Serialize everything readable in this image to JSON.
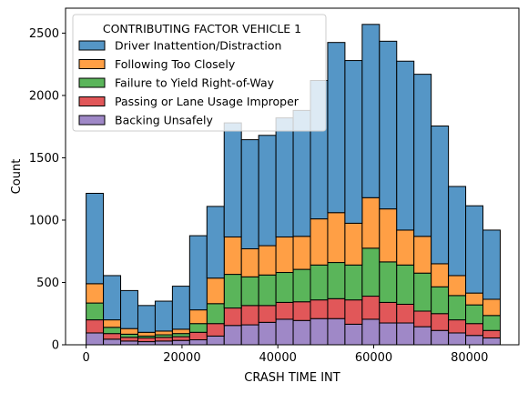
{
  "chart_data": {
    "type": "bar",
    "stacked": true,
    "xlabel": "CRASH TIME INT",
    "ylabel": "Count",
    "xlim": [
      -4300,
      90300
    ],
    "ylim": [
      0,
      2700
    ],
    "xticks": [
      0,
      20000,
      40000,
      60000,
      80000
    ],
    "xtick_labels": [
      "0",
      "20000",
      "40000",
      "60000",
      "80000"
    ],
    "yticks": [
      0,
      500,
      1000,
      1500,
      2000,
      2500
    ],
    "ytick_labels": [
      "0",
      "500",
      "1000",
      "1500",
      "2000",
      "2500"
    ],
    "bin_edges": [
      0,
      3600,
      7200,
      10800,
      14400,
      18000,
      21600,
      25200,
      28800,
      32400,
      36000,
      39600,
      43200,
      46800,
      50400,
      54000,
      57600,
      61200,
      64800,
      68400,
      72000,
      75600,
      79200,
      82800,
      86400
    ],
    "legend": {
      "title": "CONTRIBUTING FACTOR VEHICLE 1",
      "placement": "upper-left"
    },
    "series": [
      {
        "name": "Backing Unsafely",
        "color": "#9f88c7",
        "values": [
          95,
          45,
          30,
          25,
          30,
          35,
          40,
          70,
          155,
          160,
          180,
          205,
          195,
          210,
          210,
          165,
          205,
          175,
          175,
          145,
          115,
          95,
          75,
          55
        ]
      },
      {
        "name": "Passing or Lane Usage Improper",
        "color": "#e15759",
        "values": [
          105,
          45,
          30,
          30,
          30,
          30,
          60,
          100,
          140,
          155,
          135,
          135,
          150,
          150,
          160,
          195,
          185,
          165,
          150,
          125,
          135,
          105,
          95,
          60
        ]
      },
      {
        "name": "Failure to Yield Right-of-Way",
        "color": "#5ab55a",
        "values": [
          135,
          50,
          25,
          15,
          20,
          25,
          70,
          160,
          270,
          230,
          245,
          240,
          260,
          280,
          290,
          280,
          385,
          325,
          315,
          305,
          215,
          195,
          150,
          120
        ]
      },
      {
        "name": "Following Too Closely",
        "color": "#ff9f45",
        "values": [
          155,
          60,
          45,
          30,
          30,
          35,
          110,
          205,
          300,
          225,
          235,
          285,
          265,
          370,
          400,
          335,
          405,
          425,
          280,
          295,
          185,
          160,
          95,
          130
        ]
      },
      {
        "name": "Driver Inattention/Distraction",
        "color": "#5596c6",
        "values": [
          725,
          355,
          305,
          215,
          240,
          345,
          595,
          575,
          915,
          875,
          885,
          955,
          1010,
          1110,
          1365,
          1305,
          1390,
          1345,
          1355,
          1300,
          1105,
          715,
          700,
          555
        ]
      }
    ],
    "legend_order": [
      "Driver Inattention/Distraction",
      "Following Too Closely",
      "Failure to Yield Right-of-Way",
      "Passing or Lane Usage Improper",
      "Backing Unsafely"
    ],
    "grid": false
  }
}
